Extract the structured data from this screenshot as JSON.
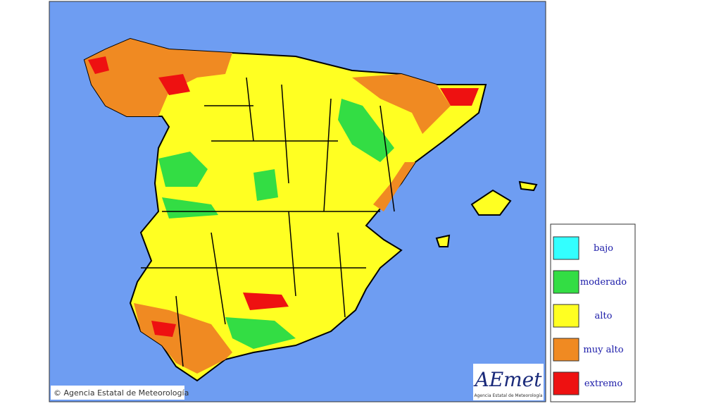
{
  "map": {
    "copyright": "© Agencia Estatal de Meteorología"
  },
  "legend": {
    "items": [
      {
        "label": "bajo",
        "color": "#33ffff"
      },
      {
        "label": "moderado",
        "color": "#33dd44"
      },
      {
        "label": "alto",
        "color": "#ffff22"
      },
      {
        "label": "muy alto",
        "color": "#f08a22"
      },
      {
        "label": "extremo",
        "color": "#ee1111"
      }
    ]
  },
  "logo": {
    "name": "AEmet",
    "subtitle": "Agencia Estatal de Meteorología"
  }
}
